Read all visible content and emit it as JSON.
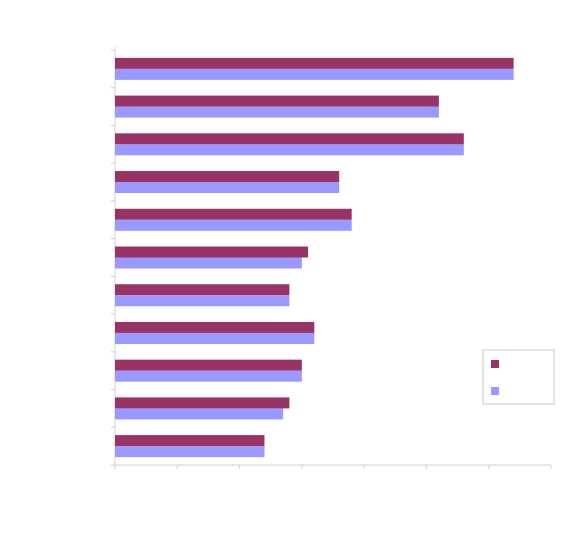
{
  "chart_data": {
    "type": "bar",
    "orientation": "horizontal",
    "categories": [
      "",
      "",
      "",
      "",
      "",
      "",
      "",
      "",
      "",
      "",
      ""
    ],
    "series": [
      {
        "color": "#993366",
        "values": [
          64,
          52,
          56,
          36,
          38,
          31,
          28,
          32,
          30,
          28,
          24
        ]
      },
      {
        "color": "#9999ff",
        "values": [
          64,
          52,
          56,
          36,
          38,
          30,
          28,
          32,
          30,
          27,
          24
        ]
      }
    ],
    "xlim": [
      0,
      70
    ],
    "x_major_unit": 10,
    "grid": false,
    "legend_position": "right",
    "title": "",
    "xlabel": "",
    "ylabel": ""
  }
}
